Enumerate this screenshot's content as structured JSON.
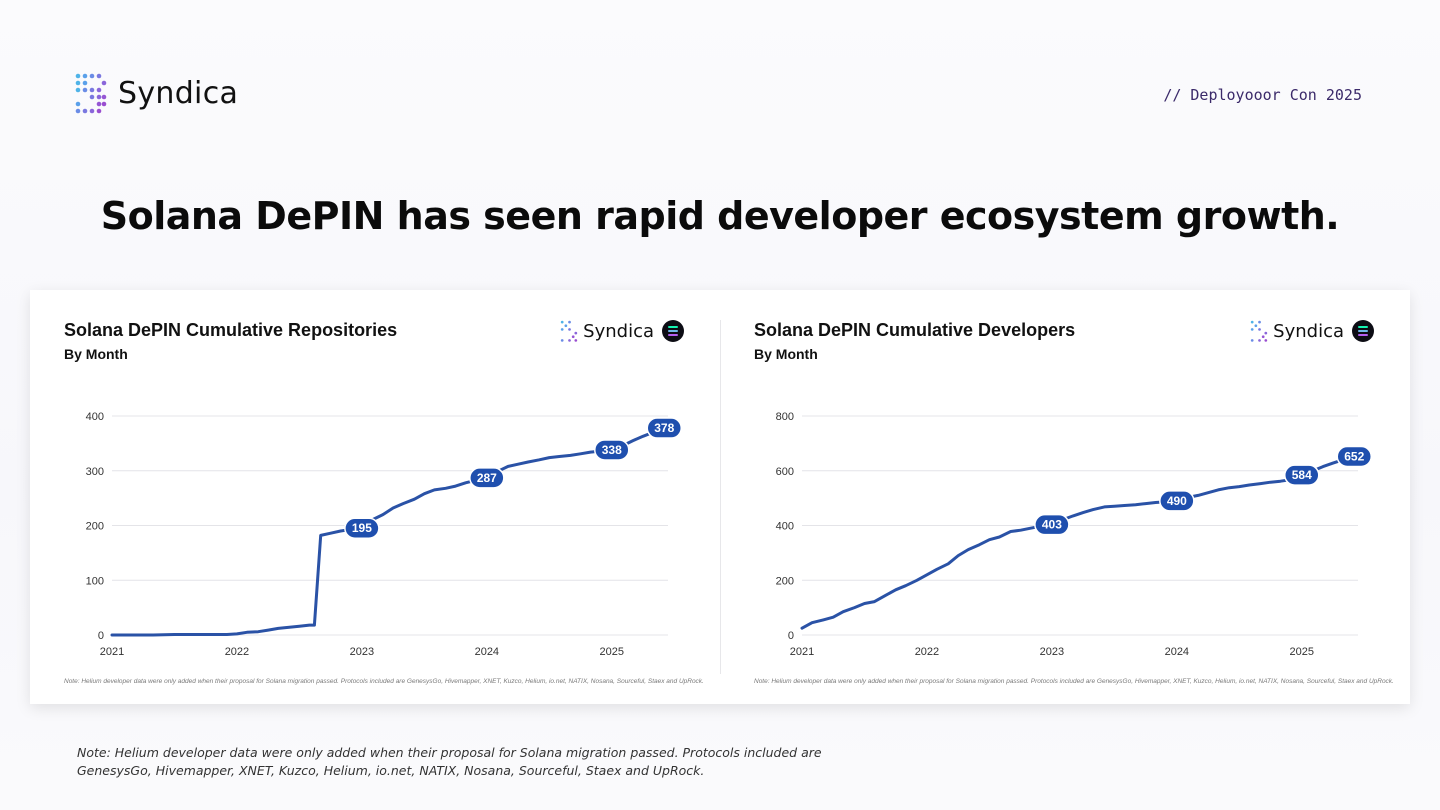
{
  "brand": {
    "name": "Syndica",
    "icon": "syndica-dots-logo-icon"
  },
  "event": "// Deployooor Con 2025",
  "headline": "Solana DePIN has seen rapid developer ecosystem growth.",
  "colors": {
    "series": "#2a52a6",
    "label_bg": "#1f4fae",
    "text": "#111111",
    "event": "#3b2a6a"
  },
  "footnote": "Note: Helium developer data were only added when their proposal for Solana migration passed. Protocols included are GenesysGo, Hivemapper, XNET, Kuzco, Helium, io.net, NATIX, Nosana, Sourceful, Staex and UpRock.",
  "chart_data": [
    {
      "type": "line",
      "title": "Solana DePIN Cumulative Repositories",
      "subtitle": "By Month",
      "logo_text": "Syndica",
      "xlabel": "",
      "ylabel": "",
      "xlim": [
        2021,
        2025.45
      ],
      "ylim": [
        0,
        400
      ],
      "yticks": [
        0,
        100,
        200,
        300,
        400
      ],
      "xticks": [
        2021,
        2022,
        2023,
        2024,
        2025
      ],
      "xtick_labels": [
        "2021",
        "2022",
        "2023",
        "2024",
        "2025"
      ],
      "grid": true,
      "series": [
        {
          "name": "Cumulative Repositories",
          "x": [
            2021.0,
            2021.17,
            2021.33,
            2021.5,
            2021.67,
            2021.83,
            2021.92,
            2022.0,
            2022.08,
            2022.17,
            2022.25,
            2022.33,
            2022.42,
            2022.5,
            2022.58,
            2022.62,
            2022.67,
            2022.75,
            2022.83,
            2022.92,
            2023.0,
            2023.08,
            2023.17,
            2023.25,
            2023.33,
            2023.42,
            2023.5,
            2023.58,
            2023.67,
            2023.75,
            2023.83,
            2023.92,
            2024.0,
            2024.08,
            2024.17,
            2024.25,
            2024.33,
            2024.42,
            2024.5,
            2024.58,
            2024.67,
            2024.75,
            2024.83,
            2024.92,
            2025.0,
            2025.08,
            2025.17,
            2025.25,
            2025.33,
            2025.42
          ],
          "y": [
            0,
            0,
            0,
            1,
            1,
            1,
            1,
            2,
            5,
            6,
            9,
            12,
            14,
            16,
            18,
            18,
            182,
            186,
            190,
            193,
            195,
            210,
            220,
            232,
            240,
            248,
            258,
            265,
            268,
            272,
            278,
            283,
            287,
            298,
            308,
            312,
            316,
            320,
            324,
            326,
            328,
            331,
            334,
            336,
            338,
            345,
            355,
            363,
            370,
            378
          ],
          "labels": [
            {
              "x": 2023.0,
              "y": 195,
              "text": "195"
            },
            {
              "x": 2024.0,
              "y": 287,
              "text": "287"
            },
            {
              "x": 2025.0,
              "y": 338,
              "text": "338"
            },
            {
              "x": 2025.42,
              "y": 378,
              "text": "378"
            }
          ]
        }
      ],
      "note": "Note: Helium developer data were only added when their proposal for Solana migration passed. Protocols included are GenesysGo, Hivemapper, XNET, Kuzco, Helium, io.net, NATIX, Nosana, Sourceful, Staex and UpRock."
    },
    {
      "type": "line",
      "title": "Solana DePIN Cumulative Developers",
      "subtitle": "By Month",
      "logo_text": "Syndica",
      "xlabel": "",
      "ylabel": "",
      "xlim": [
        2021,
        2025.45
      ],
      "ylim": [
        0,
        800
      ],
      "yticks": [
        0,
        200,
        400,
        600,
        800
      ],
      "xticks": [
        2021,
        2022,
        2023,
        2024,
        2025
      ],
      "xtick_labels": [
        "2021",
        "2022",
        "2023",
        "2024",
        "2025"
      ],
      "grid": true,
      "series": [
        {
          "name": "Cumulative Developers",
          "x": [
            2021.0,
            2021.08,
            2021.17,
            2021.25,
            2021.33,
            2021.42,
            2021.5,
            2021.58,
            2021.67,
            2021.75,
            2021.83,
            2021.92,
            2022.0,
            2022.08,
            2022.17,
            2022.25,
            2022.33,
            2022.42,
            2022.5,
            2022.58,
            2022.67,
            2022.75,
            2022.83,
            2022.92,
            2023.0,
            2023.08,
            2023.17,
            2023.25,
            2023.33,
            2023.42,
            2023.5,
            2023.58,
            2023.67,
            2023.75,
            2023.83,
            2023.92,
            2024.0,
            2024.08,
            2024.17,
            2024.25,
            2024.33,
            2024.42,
            2024.5,
            2024.58,
            2024.67,
            2024.75,
            2024.83,
            2024.92,
            2025.0,
            2025.08,
            2025.17,
            2025.25,
            2025.33,
            2025.42
          ],
          "y": [
            25,
            45,
            55,
            65,
            85,
            100,
            115,
            122,
            145,
            165,
            180,
            200,
            220,
            240,
            260,
            290,
            312,
            330,
            348,
            358,
            378,
            383,
            390,
            398,
            403,
            420,
            435,
            447,
            458,
            468,
            470,
            473,
            476,
            480,
            484,
            487,
            490,
            502,
            510,
            520,
            530,
            538,
            542,
            548,
            553,
            558,
            562,
            568,
            584,
            598,
            615,
            628,
            640,
            652
          ],
          "labels": [
            {
              "x": 2023.0,
              "y": 403,
              "text": "403"
            },
            {
              "x": 2024.0,
              "y": 490,
              "text": "490"
            },
            {
              "x": 2025.0,
              "y": 584,
              "text": "584"
            },
            {
              "x": 2025.42,
              "y": 652,
              "text": "652"
            }
          ]
        }
      ],
      "note": "Note: Helium developer data were only added when their proposal for Solana migration passed. Protocols included are GenesysGo, Hivemapper, XNET, Kuzco, Helium, io.net, NATIX, Nosana, Sourceful, Staex and UpRock."
    }
  ]
}
